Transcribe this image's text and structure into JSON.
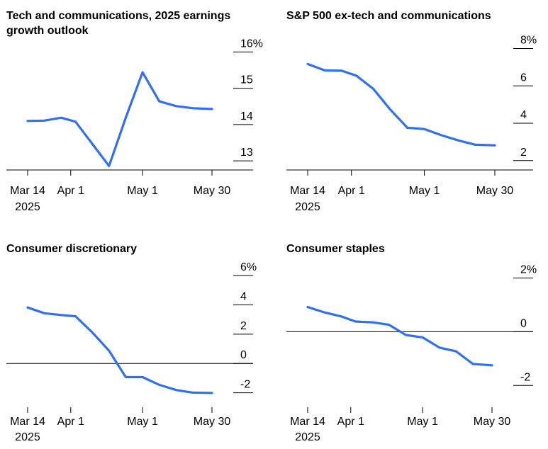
{
  "colors": {
    "line": "#2f6ff0",
    "axis": "#000000"
  },
  "chart_data": [
    {
      "type": "line",
      "title": "Tech and communications, 2025 earnings growth outlook",
      "x_ticks": [
        "Mar 14",
        "Apr 1",
        "May 1",
        "May 30"
      ],
      "x_year_label": "2025",
      "y_ticks": [
        "16%",
        "15",
        "14",
        "13"
      ],
      "y_tick_values": [
        16,
        15,
        14,
        13
      ],
      "ylim": [
        12.75,
        16.3
      ],
      "x": [
        "2025-03-14",
        "2025-03-21",
        "2025-03-28",
        "2025-04-03",
        "2025-04-17",
        "2025-04-24",
        "2025-05-01",
        "2025-05-08",
        "2025-05-15",
        "2025-05-22",
        "2025-05-30"
      ],
      "values": [
        14.1,
        14.11,
        14.19,
        14.08,
        12.86,
        14.19,
        15.44,
        14.64,
        14.51,
        14.45,
        14.43
      ],
      "zero_line": false
    },
    {
      "type": "line",
      "title": "S&P 500 ex-tech and communications",
      "x_ticks": [
        "Mar 14",
        "Apr 1",
        "May 1",
        "May 30"
      ],
      "x_year_label": "2025",
      "y_ticks": [
        "8%",
        "6",
        "4",
        "2"
      ],
      "y_tick_values": [
        8,
        6,
        4,
        2
      ],
      "ylim": [
        1.5,
        8.4
      ],
      "x": [
        "2025-03-14",
        "2025-03-21",
        "2025-03-28",
        "2025-04-03",
        "2025-04-10",
        "2025-04-17",
        "2025-04-24",
        "2025-05-01",
        "2025-05-08",
        "2025-05-15",
        "2025-05-22",
        "2025-05-30"
      ],
      "values": [
        7.17,
        6.83,
        6.81,
        6.55,
        5.84,
        4.73,
        3.76,
        3.69,
        3.36,
        3.08,
        2.85,
        2.82
      ],
      "zero_line": false
    },
    {
      "type": "line",
      "title": "Consumer discretionary",
      "x_ticks": [
        "Mar 14",
        "Apr 1",
        "May 1",
        "May 30"
      ],
      "x_year_label": "2025",
      "y_ticks": [
        "6%",
        "4",
        "2",
        "0",
        "-2"
      ],
      "y_tick_values": [
        6,
        4,
        2,
        0,
        -2
      ],
      "ylim": [
        -2.6,
        6.2
      ],
      "x": [
        "2025-03-14",
        "2025-03-21",
        "2025-03-28",
        "2025-04-03",
        "2025-04-10",
        "2025-04-17",
        "2025-04-24",
        "2025-05-01",
        "2025-05-08",
        "2025-05-15",
        "2025-05-22",
        "2025-05-30"
      ],
      "values": [
        3.82,
        3.43,
        3.31,
        3.22,
        2.12,
        0.87,
        -0.93,
        -0.93,
        -1.46,
        -1.81,
        -1.99,
        -2.01
      ],
      "zero_line": true
    },
    {
      "type": "line",
      "title": "Consumer staples",
      "x_ticks": [
        "Mar 14",
        "Apr 1",
        "May 1",
        "May 30"
      ],
      "x_year_label": "2025",
      "y_ticks": [
        "2%",
        "0",
        "-2"
      ],
      "y_tick_values": [
        2,
        0,
        -2
      ],
      "ylim": [
        -2.6,
        2.2
      ],
      "x": [
        "2025-03-14",
        "2025-03-21",
        "2025-03-28",
        "2025-04-03",
        "2025-04-10",
        "2025-04-17",
        "2025-04-24",
        "2025-05-01",
        "2025-05-08",
        "2025-05-15",
        "2025-05-22",
        "2025-05-30"
      ],
      "values": [
        0.92,
        0.72,
        0.57,
        0.38,
        0.35,
        0.26,
        -0.12,
        -0.21,
        -0.59,
        -0.73,
        -1.2,
        -1.25
      ],
      "zero_line": true
    }
  ]
}
